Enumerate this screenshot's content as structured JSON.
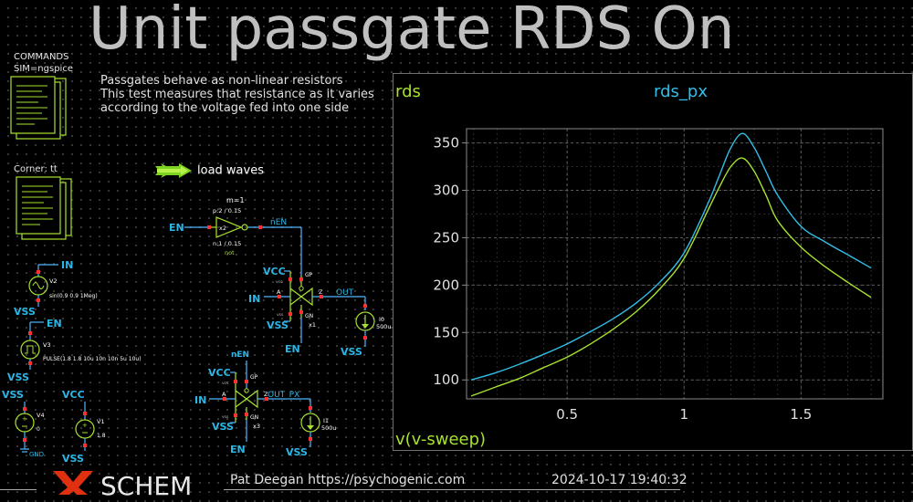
{
  "title": "Unit passgate RDS On",
  "commands": {
    "heading": "COMMANDS",
    "sim": "SIM=ngspice"
  },
  "corner": {
    "label": "Corner: tt"
  },
  "description": [
    "Passgates behave as non-linear resistors",
    "This test measures that resistance as it varies",
    "according to the voltage fed into one side"
  ],
  "load_waves": "load waves",
  "schematic": {
    "inverter": {
      "m": "m=1",
      "p": "p:2 / 0.15",
      "inst": "x2",
      "n": "n:1 / 0.15",
      "name": "not",
      "in": "EN",
      "out": "nEN"
    },
    "pg1": {
      "vcc": "VCC",
      "gp": "GP",
      "vss": "VSS",
      "gn": "GN",
      "a": "A",
      "z": "Z",
      "inst": "x1",
      "in": "IN",
      "out": "OUT",
      "en": "EN",
      "vcc_small": "vcc",
      "vss_small": "vss"
    },
    "i0": {
      "name": "I0",
      "value": "500u",
      "vss": "VSS"
    },
    "pg2": {
      "nen": "nEN",
      "vcc": "VCC",
      "gp": "GP",
      "vss": "VSS",
      "gn": "GN",
      "a": "A",
      "z": "Z",
      "inst": "x3",
      "in": "IN",
      "out": "OUT_PX",
      "en": "EN",
      "vcc_small": "vcc",
      "vss_small": "vss"
    },
    "i1": {
      "name": "I1",
      "value": "500u",
      "vss": "VSS"
    },
    "v2": {
      "net": "IN",
      "name": "V2",
      "value": "sin(0.9 0.9 1Meg)",
      "vss": "VSS"
    },
    "v3": {
      "net": "EN",
      "name": "V3",
      "value": "PULSE(1.8 1.8 10u 10n 10n 5u 10u)",
      "vss": "VSS"
    },
    "v4": {
      "top": "VSS",
      "name": "V4",
      "value": "0",
      "bottom": "GND"
    },
    "v1": {
      "top": "VCC",
      "name": "V1",
      "value": "1.8",
      "bottom": "VSS"
    },
    "plus": "+"
  },
  "colors": {
    "wire": "#4fb6ff",
    "net_label": "#2ab6e6",
    "component": "#a6e22e",
    "pin": "#ff3030",
    "trace_rds": "#a6e22e",
    "trace_rds_px": "#33bde6",
    "text": "#ffffff",
    "title": "#bfbfbf"
  },
  "chart_data": {
    "type": "line",
    "xlabel": "v(v-sweep)",
    "xlim": [
      0.07,
      1.85
    ],
    "ylim": [
      80,
      365
    ],
    "xticks": [
      0.5,
      1,
      1.5
    ],
    "xtick_labels": [
      "0.5",
      "1",
      "1.5"
    ],
    "yticks": [
      100,
      150,
      200,
      250,
      300,
      350
    ],
    "ytick_labels": [
      "100",
      "150",
      "200",
      "250",
      "300",
      "350"
    ],
    "grid": true,
    "series": [
      {
        "name": "rds",
        "color": "#a6e22e",
        "x": [
          0.09,
          0.2,
          0.3,
          0.4,
          0.5,
          0.6,
          0.7,
          0.8,
          0.9,
          1.0,
          1.1,
          1.15,
          1.2,
          1.25,
          1.3,
          1.35,
          1.4,
          1.5,
          1.6,
          1.7,
          1.8
        ],
        "y": [
          83,
          93,
          102,
          113,
          124,
          138,
          154,
          173,
          197,
          228,
          278,
          303,
          325,
          334,
          320,
          295,
          268,
          240,
          220,
          203,
          187
        ]
      },
      {
        "name": "rds_px",
        "color": "#33bde6",
        "x": [
          0.09,
          0.2,
          0.3,
          0.4,
          0.5,
          0.6,
          0.7,
          0.8,
          0.9,
          1.0,
          1.1,
          1.15,
          1.2,
          1.25,
          1.3,
          1.35,
          1.4,
          1.5,
          1.6,
          1.7,
          1.8
        ],
        "y": [
          100,
          108,
          117,
          127,
          138,
          151,
          165,
          182,
          204,
          234,
          285,
          315,
          345,
          360,
          345,
          320,
          295,
          262,
          246,
          232,
          218
        ]
      }
    ]
  },
  "footer": {
    "logo": "SCHEM",
    "author": "Pat Deegan https://psychogenic.com",
    "timestamp": "2024-10-17  19:40:32"
  }
}
